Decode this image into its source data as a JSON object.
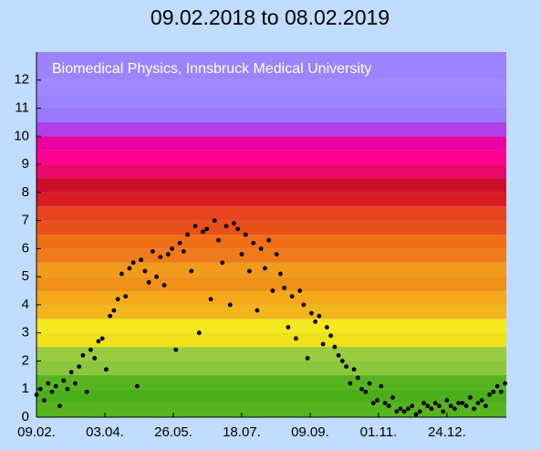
{
  "chart_data": {
    "type": "scatter",
    "title": "09.02.2018 to 08.02.2019",
    "annotation": "Biomedical Physics, Innsbruck Medical University",
    "color": "#000000",
    "x": [
      0,
      3,
      6,
      9,
      12,
      15,
      18,
      21,
      24,
      27,
      30,
      33,
      36,
      39,
      42,
      45,
      48,
      51,
      54,
      57,
      60,
      63,
      66,
      69,
      72,
      75,
      78,
      81,
      84,
      87,
      90,
      93,
      96,
      99,
      102,
      105,
      108,
      111,
      114,
      117,
      120,
      123,
      126,
      129,
      132,
      135,
      138,
      141,
      144,
      147,
      150,
      153,
      156,
      159,
      162,
      165,
      168,
      171,
      174,
      177,
      180,
      183,
      186,
      189,
      192,
      195,
      198,
      201,
      204,
      207,
      210,
      213,
      216,
      219,
      222,
      225,
      228,
      231,
      234,
      237,
      240,
      243,
      246,
      249,
      252,
      255,
      258,
      261,
      264,
      267,
      270,
      273,
      276,
      279,
      282,
      285,
      288,
      291,
      294,
      297,
      300,
      303,
      306,
      309,
      312,
      315,
      318,
      321,
      324,
      327,
      330,
      333,
      336,
      339,
      342,
      345,
      348,
      351,
      354,
      357,
      360,
      363
    ],
    "values": [
      0.8,
      1.0,
      0.6,
      1.2,
      0.9,
      1.1,
      0.4,
      1.3,
      1.0,
      1.6,
      1.2,
      1.8,
      2.2,
      0.9,
      2.4,
      2.1,
      2.7,
      2.8,
      1.7,
      3.6,
      3.8,
      4.2,
      5.1,
      4.3,
      5.3,
      5.5,
      1.1,
      5.6,
      5.2,
      4.8,
      5.9,
      5.0,
      5.7,
      4.7,
      5.8,
      6.0,
      2.4,
      6.2,
      5.9,
      6.5,
      5.2,
      6.8,
      3.0,
      6.6,
      6.7,
      4.2,
      7.0,
      6.3,
      5.5,
      6.8,
      4.0,
      6.9,
      6.7,
      5.8,
      6.5,
      5.2,
      6.2,
      3.8,
      6.0,
      5.3,
      6.3,
      4.5,
      5.8,
      5.1,
      4.6,
      3.2,
      4.3,
      2.8,
      4.5,
      4.0,
      2.1,
      3.7,
      3.4,
      3.6,
      2.6,
      3.2,
      2.9,
      2.5,
      2.2,
      2.0,
      1.8,
      1.2,
      1.7,
      1.4,
      1.0,
      0.9,
      1.2,
      0.5,
      0.6,
      1.1,
      0.5,
      0.4,
      0.7,
      0.2,
      0.3,
      0.2,
      0.3,
      0.4,
      0.1,
      0.2,
      0.5,
      0.4,
      0.3,
      0.5,
      0.4,
      0.2,
      0.6,
      0.4,
      0.3,
      0.5,
      0.5,
      0.4,
      0.7,
      0.3,
      0.5,
      0.6,
      0.4,
      0.8,
      0.9,
      1.1,
      0.9,
      1.2
    ],
    "xlim": [
      0,
      364
    ],
    "xticks": [
      {
        "value": 0,
        "label": "09.02."
      },
      {
        "value": 53,
        "label": "03.04."
      },
      {
        "value": 106,
        "label": "26.05."
      },
      {
        "value": 159,
        "label": "18.07."
      },
      {
        "value": 212,
        "label": "09.09."
      },
      {
        "value": 265,
        "label": "01.11."
      },
      {
        "value": 318,
        "label": "24.12."
      }
    ],
    "ylim": [
      0,
      13
    ],
    "yticks": [
      0,
      1,
      2,
      3,
      4,
      5,
      6,
      7,
      8,
      9,
      10,
      11,
      12
    ],
    "bands": [
      {
        "from": 0,
        "to": 0.5,
        "color": "#58b41e"
      },
      {
        "from": 0.5,
        "to": 1,
        "color": "#4caf1a"
      },
      {
        "from": 1,
        "to": 1.5,
        "color": "#58b41e"
      },
      {
        "from": 1.5,
        "to": 2,
        "color": "#8cc63c"
      },
      {
        "from": 2,
        "to": 2.5,
        "color": "#9acc40"
      },
      {
        "from": 2.5,
        "to": 3,
        "color": "#eee01a"
      },
      {
        "from": 3,
        "to": 3.5,
        "color": "#f5e81e"
      },
      {
        "from": 3.5,
        "to": 4,
        "color": "#f2b51c"
      },
      {
        "from": 4,
        "to": 4.5,
        "color": "#f5a81a"
      },
      {
        "from": 4.5,
        "to": 5,
        "color": "#f09018"
      },
      {
        "from": 5,
        "to": 5.5,
        "color": "#f29a1c"
      },
      {
        "from": 5.5,
        "to": 6,
        "color": "#ee7a1a"
      },
      {
        "from": 6,
        "to": 6.5,
        "color": "#f07018"
      },
      {
        "from": 6.5,
        "to": 7,
        "color": "#e8501a"
      },
      {
        "from": 7,
        "to": 7.5,
        "color": "#e84420"
      },
      {
        "from": 7.5,
        "to": 8,
        "color": "#d81c24"
      },
      {
        "from": 8,
        "to": 8.5,
        "color": "#cc0f28"
      },
      {
        "from": 8.5,
        "to": 9,
        "color": "#e80a6a"
      },
      {
        "from": 9,
        "to": 9.5,
        "color": "#ff0090"
      },
      {
        "from": 9.5,
        "to": 10,
        "color": "#e800a0"
      },
      {
        "from": 10,
        "to": 10.5,
        "color": "#b040e8"
      },
      {
        "from": 10.5,
        "to": 11,
        "color": "#9a78ff"
      },
      {
        "from": 11,
        "to": 11.5,
        "color": "#9c84ff"
      },
      {
        "from": 11.5,
        "to": 12,
        "color": "#a088ff"
      },
      {
        "from": 12,
        "to": 13,
        "color": "#9c84ff"
      }
    ]
  }
}
